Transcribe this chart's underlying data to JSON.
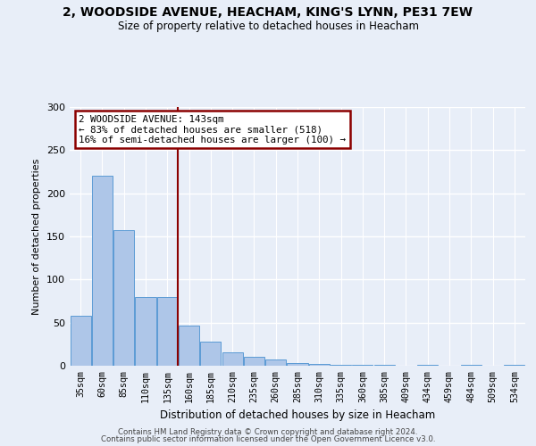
{
  "title": "2, WOODSIDE AVENUE, HEACHAM, KING'S LYNN, PE31 7EW",
  "subtitle": "Size of property relative to detached houses in Heacham",
  "xlabel": "Distribution of detached houses by size in Heacham",
  "ylabel": "Number of detached properties",
  "bar_labels": [
    "35sqm",
    "60sqm",
    "85sqm",
    "110sqm",
    "135sqm",
    "160sqm",
    "185sqm",
    "210sqm",
    "235sqm",
    "260sqm",
    "285sqm",
    "310sqm",
    "335sqm",
    "360sqm",
    "385sqm",
    "409sqm",
    "434sqm",
    "459sqm",
    "484sqm",
    "509sqm",
    "534sqm"
  ],
  "bar_values": [
    58,
    220,
    157,
    80,
    80,
    47,
    28,
    16,
    10,
    7,
    3,
    2,
    1,
    1,
    1,
    0,
    1,
    0,
    1,
    0,
    1
  ],
  "bar_color": "#aec6e8",
  "bar_edge_color": "#5b9bd5",
  "vline_x": 4.5,
  "vline_color": "#8b0000",
  "annotation_text": "2 WOODSIDE AVENUE: 143sqm\n← 83% of detached houses are smaller (518)\n16% of semi-detached houses are larger (100) →",
  "annotation_box_color": "#ffffff",
  "annotation_box_edge": "#8b0000",
  "ylim": [
    0,
    300
  ],
  "yticks": [
    0,
    50,
    100,
    150,
    200,
    250,
    300
  ],
  "footer1": "Contains HM Land Registry data © Crown copyright and database right 2024.",
  "footer2": "Contains public sector information licensed under the Open Government Licence v3.0.",
  "bg_color": "#e8eef8",
  "grid_color": "#ffffff",
  "title_fontsize": 10,
  "subtitle_fontsize": 8.5
}
